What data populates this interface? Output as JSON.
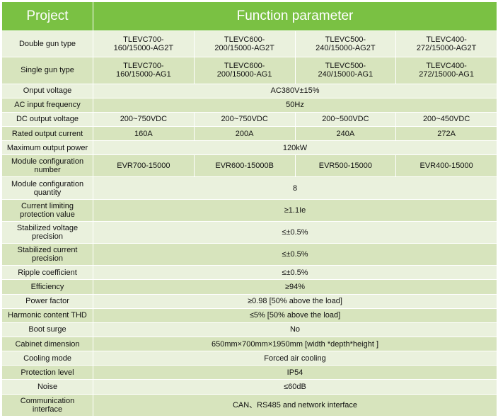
{
  "header": {
    "project": "Project",
    "function": "Function parameter"
  },
  "rows": [
    {
      "label": "Double gun type",
      "values": [
        "TLEVC700-\n160/15000-AG2T",
        "TLEVC600-\n200/15000-AG2T",
        "TLEVC500-\n240/15000-AG2T",
        "TLEVC400-\n272/15000-AG2T"
      ]
    },
    {
      "label": "Single gun type",
      "values": [
        "TLEVC700-\n160/15000-AG1",
        "TLEVC600-\n200/15000-AG1",
        "TLEVC500-\n240/15000-AG1",
        "TLEVC400-\n272/15000-AG1"
      ]
    },
    {
      "label": "Onput voltage",
      "values": [
        "AC380V±15%"
      ]
    },
    {
      "label": "AC input frequency",
      "values": [
        "50Hz"
      ]
    },
    {
      "label": "DC output  voltage",
      "values": [
        "200~750VDC",
        "200~750VDC",
        "200~500VDC",
        "200~450VDC"
      ]
    },
    {
      "label": "Rated output current",
      "values": [
        "160A",
        "200A",
        "240A",
        "272A"
      ]
    },
    {
      "label": "Maximum output power",
      "values": [
        "120kW"
      ]
    },
    {
      "label": "Module configuration\nnumber",
      "values": [
        "EVR700-15000",
        "EVR600-15000B",
        "EVR500-15000",
        "EVR400-15000"
      ]
    },
    {
      "label": "Module configuration\nquantity",
      "values": [
        "8"
      ]
    },
    {
      "label": "Current limiting\nprotection value",
      "values": [
        "≥1.1Ie"
      ]
    },
    {
      "label": "Stabilized voltage\nprecision",
      "values": [
        "≤±0.5%"
      ]
    },
    {
      "label": "Stabilized current\nprecision",
      "values": [
        "≤±0.5%"
      ]
    },
    {
      "label": "Ripple coefficient",
      "values": [
        "≤±0.5%"
      ]
    },
    {
      "label": "Efficiency",
      "values": [
        "≥94%"
      ]
    },
    {
      "label": "Power factor",
      "values": [
        "≥0.98 [50% above the load]"
      ]
    },
    {
      "label": "Harmonic content  THD",
      "values": [
        "≤5% [50% above the load]"
      ]
    },
    {
      "label": "Boot surge",
      "values": [
        "No"
      ]
    },
    {
      "label": "Cabinet dimension",
      "values": [
        "650mm×700mm×1950mm [width *depth*height ]"
      ]
    },
    {
      "label": "Cooling mode",
      "values": [
        "Forced air cooling"
      ]
    },
    {
      "label": "Protection level",
      "values": [
        "IP54"
      ]
    },
    {
      "label": "Noise",
      "values": [
        "≤60dB"
      ]
    },
    {
      "label": "Communication\ninterface",
      "values": [
        "CAN、RS485 and network interface"
      ]
    }
  ]
}
